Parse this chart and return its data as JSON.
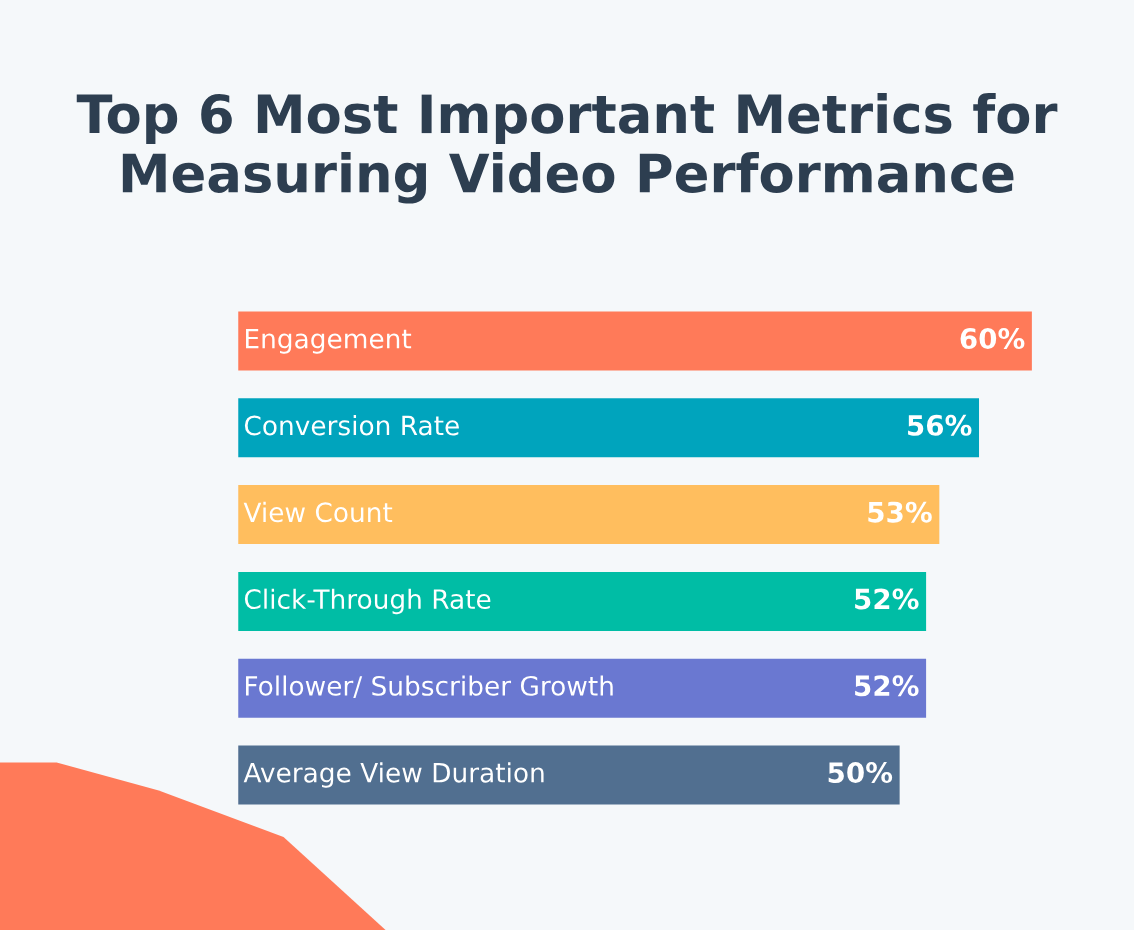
{
  "chart_data": {
    "type": "bar",
    "orientation": "horizontal",
    "title": "Top 6 Most Important Metrics for\nMeasuring Video Performance",
    "categories": [
      "Engagement",
      "Conversion Rate",
      "View Count",
      "Click-Through Rate",
      "Follower/ Subscriber Growth",
      "Average View Duration"
    ],
    "values": [
      60,
      56,
      53,
      52,
      52,
      50
    ],
    "colors": [
      "#ff7a59",
      "#00a4bd",
      "#ffbe5e",
      "#00bda5",
      "#6a78d1",
      "#516f90"
    ],
    "value_labels": [
      "60%",
      "56%",
      "53%",
      "52%",
      "52%",
      "50%"
    ]
  }
}
